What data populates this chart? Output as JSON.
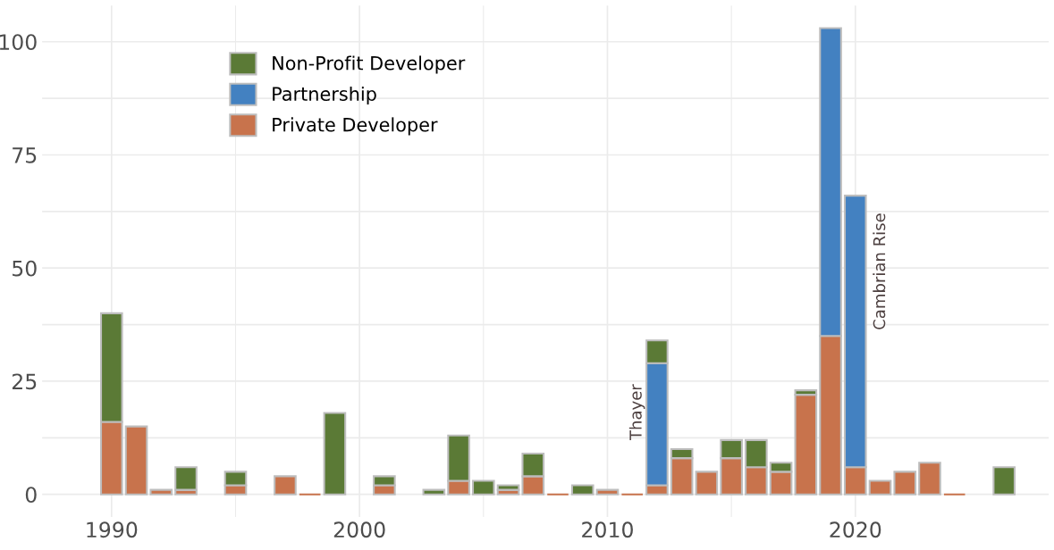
{
  "chart_data": {
    "type": "bar",
    "stacked": true,
    "x": [
      1990,
      1991,
      1992,
      1993,
      1995,
      1997,
      1998,
      1999,
      2001,
      2003,
      2004,
      2005,
      2006,
      2007,
      2008,
      2009,
      2010,
      2011,
      2012,
      2013,
      2014,
      2015,
      2016,
      2017,
      2018,
      2019,
      2020,
      2021,
      2022,
      2023,
      2024,
      2026
    ],
    "series": [
      {
        "name": "Private Developer",
        "color": "#c8734c",
        "values": [
          16,
          15,
          1,
          1,
          2,
          4,
          0,
          null,
          2,
          null,
          3,
          null,
          1,
          4,
          0,
          null,
          1,
          0,
          2,
          8,
          5,
          8,
          6,
          5,
          22,
          35,
          6,
          3,
          5,
          7,
          0,
          null
        ]
      },
      {
        "name": "Partnership",
        "color": "#4381c1",
        "values": [
          null,
          null,
          null,
          null,
          null,
          null,
          null,
          null,
          null,
          null,
          null,
          null,
          null,
          null,
          null,
          null,
          null,
          null,
          27,
          null,
          null,
          null,
          null,
          null,
          null,
          68,
          60,
          null,
          null,
          null,
          null,
          null
        ]
      },
      {
        "name": "Non-Profit Developer",
        "color": "#5b7a36",
        "values": [
          24,
          null,
          null,
          5,
          3,
          null,
          null,
          18,
          2,
          1,
          10,
          3,
          1,
          5,
          null,
          2,
          null,
          null,
          5,
          2,
          null,
          4,
          6,
          2,
          1,
          null,
          null,
          null,
          null,
          null,
          null,
          6
        ]
      }
    ],
    "xlim": [
      1987.2,
      2027.8
    ],
    "xticks": [
      1990,
      2000,
      2010,
      2020
    ],
    "ylim": [
      -5,
      108
    ],
    "yticks": [
      0,
      {
        "value": 12.5,
        "label": null
      },
      25,
      {
        "value": 37.5,
        "label": null
      },
      50,
      {
        "value": 62.5,
        "label": null
      },
      75,
      {
        "value": 87.5,
        "label": null
      },
      100
    ],
    "grid": true,
    "legend": "top left",
    "annotations": [
      "Thayer",
      "Cambrian Rise"
    ]
  }
}
